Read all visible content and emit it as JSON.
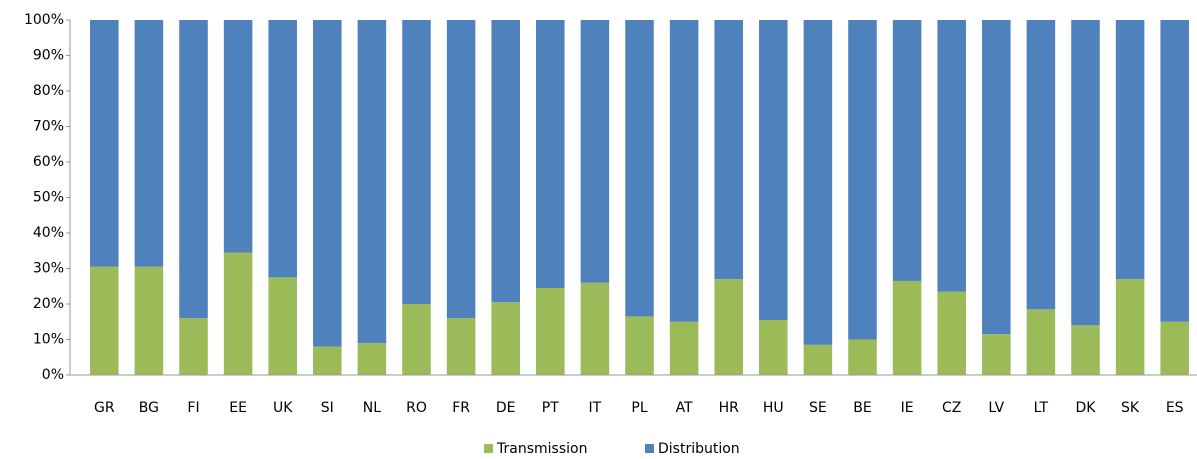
{
  "chart_data": {
    "type": "stacked_bar",
    "categories": [
      "GR",
      "BG",
      "FI",
      "EE",
      "UK",
      "SI",
      "NL",
      "RO",
      "FR",
      "DE",
      "PT",
      "IT",
      "PL",
      "AT",
      "HR",
      "HU",
      "SE",
      "BE",
      "IE",
      "CZ",
      "LV",
      "LT",
      "DK",
      "SK",
      "ES"
    ],
    "series": [
      {
        "name": "Transmission",
        "color": "#9bbb59",
        "values": [
          30.5,
          30.5,
          16,
          34.5,
          27.5,
          8,
          9,
          20,
          16,
          20.5,
          24.5,
          26,
          16.5,
          15,
          27,
          15.5,
          8.5,
          10,
          26.5,
          23.5,
          11.5,
          18.5,
          14,
          27,
          15
        ]
      },
      {
        "name": "Distribution",
        "color": "#4f81bd",
        "values": [
          69.5,
          69.5,
          84,
          65.5,
          72.5,
          92,
          91,
          80,
          84,
          79.5,
          75.5,
          74,
          83.5,
          85,
          73,
          84.5,
          91.5,
          90,
          73.5,
          76.5,
          88.5,
          81.5,
          86,
          73,
          85
        ]
      }
    ],
    "ylim": [
      0,
      100
    ],
    "yticks": [
      {
        "value": 0,
        "label": "0%"
      },
      {
        "value": 10,
        "label": "10%"
      },
      {
        "value": 20,
        "label": "20%"
      },
      {
        "value": 30,
        "label": "30%"
      },
      {
        "value": 40,
        "label": "40%"
      },
      {
        "value": 50,
        "label": "50%"
      },
      {
        "value": 60,
        "label": "60%"
      },
      {
        "value": 70,
        "label": "70%"
      },
      {
        "value": 80,
        "label": "80%"
      },
      {
        "value": 90,
        "label": "90%"
      },
      {
        "value": 100,
        "label": "100%"
      }
    ],
    "legend": "bottom"
  }
}
